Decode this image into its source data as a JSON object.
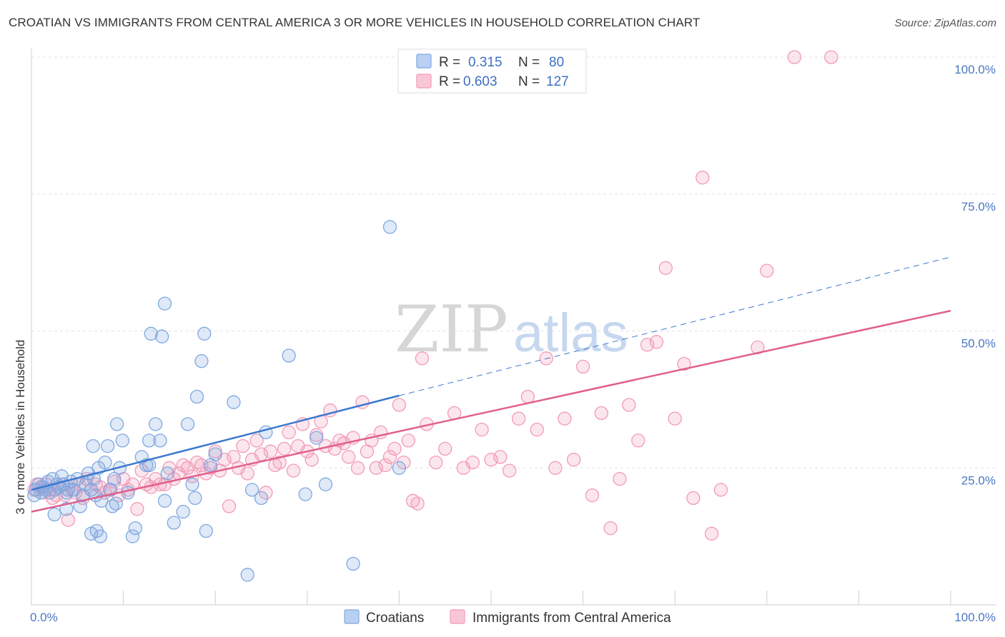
{
  "header": {
    "title": "CROATIAN VS IMMIGRANTS FROM CENTRAL AMERICA 3 OR MORE VEHICLES IN HOUSEHOLD CORRELATION CHART",
    "source": "Source: ZipAtlas.com"
  },
  "watermark": {
    "zip": "ZIP",
    "atlas": "atlas"
  },
  "chart_data": {
    "type": "scatter",
    "title": "CROATIAN VS IMMIGRANTS FROM CENTRAL AMERICA 3 OR MORE VEHICLES IN HOUSEHOLD CORRELATION CHART",
    "xlabel": "",
    "ylabel": "3 or more Vehicles in Household",
    "xlim": [
      0,
      100
    ],
    "ylim": [
      0,
      100
    ],
    "x_tick_labels": [
      "0.0%",
      "100.0%"
    ],
    "y_ticks": [
      25,
      50,
      75,
      100
    ],
    "y_tick_labels": [
      "25.0%",
      "50.0%",
      "75.0%",
      "100.0%"
    ],
    "grid": true,
    "legend_placement": "top-center",
    "legend": [
      {
        "r_label": "R =",
        "r_value": "0.315",
        "n_label": "N =",
        "n_value": "80"
      },
      {
        "r_label": "R =",
        "r_value": "0.603",
        "n_label": "N =",
        "n_value": "127"
      }
    ],
    "series": [
      {
        "name": "Croatians",
        "color": "#7fa8e0",
        "line_color": "#3b78cf",
        "trend": {
          "x0": 0,
          "y0": 21,
          "x1": 40,
          "y1": 38.2,
          "dash_x1": 100,
          "dash_y1": 63.5
        },
        "points": [
          [
            0.3,
            20
          ],
          [
            0.5,
            21
          ],
          [
            0.8,
            22
          ],
          [
            1,
            20.5
          ],
          [
            1.2,
            21.5
          ],
          [
            1.5,
            21
          ],
          [
            1.8,
            22.5
          ],
          [
            2,
            20.5
          ],
          [
            2.3,
            23
          ],
          [
            2.5,
            21
          ],
          [
            2.8,
            22
          ],
          [
            3,
            21.5
          ],
          [
            3.3,
            23.5
          ],
          [
            3.5,
            22
          ],
          [
            3.8,
            20.5
          ],
          [
            4,
            21
          ],
          [
            4.3,
            22.5
          ],
          [
            4.6,
            21
          ],
          [
            5,
            23
          ],
          [
            5.3,
            18
          ],
          [
            5.6,
            20
          ],
          [
            5.9,
            22
          ],
          [
            6.2,
            24
          ],
          [
            6.5,
            21
          ],
          [
            6.8,
            23
          ],
          [
            7,
            20
          ],
          [
            7.3,
            25
          ],
          [
            7.6,
            19
          ],
          [
            8,
            26
          ],
          [
            8.3,
            29
          ],
          [
            8.6,
            21
          ],
          [
            9,
            23
          ],
          [
            9.3,
            33
          ],
          [
            9.6,
            25
          ],
          [
            9.9,
            30
          ],
          [
            2.5,
            16.5
          ],
          [
            3.8,
            17.5
          ],
          [
            6.5,
            13
          ],
          [
            7.5,
            12.5
          ],
          [
            7.1,
            13.5
          ],
          [
            6.7,
            29
          ],
          [
            8.8,
            18
          ],
          [
            9.2,
            18.5
          ],
          [
            10.5,
            20.5
          ],
          [
            11,
            12.5
          ],
          [
            11.3,
            14
          ],
          [
            12,
            27
          ],
          [
            12.5,
            25.5
          ],
          [
            12.8,
            25.5
          ],
          [
            12.8,
            30
          ],
          [
            13,
            49.5
          ],
          [
            13.5,
            33
          ],
          [
            14,
            30
          ],
          [
            14.2,
            49
          ],
          [
            14.5,
            55
          ],
          [
            14.8,
            24
          ],
          [
            15.5,
            15
          ],
          [
            16.5,
            17
          ],
          [
            17,
            33
          ],
          [
            17.5,
            22
          ],
          [
            17.8,
            19.5
          ],
          [
            18,
            38
          ],
          [
            18.5,
            44.5
          ],
          [
            18.8,
            49.5
          ],
          [
            19,
            13.5
          ],
          [
            14.5,
            19
          ],
          [
            19.5,
            25.5
          ],
          [
            20,
            27.5
          ],
          [
            22,
            37
          ],
          [
            23.5,
            5.5
          ],
          [
            24,
            21
          ],
          [
            25,
            19.5
          ],
          [
            25.5,
            31.5
          ],
          [
            28,
            45.5
          ],
          [
            29.8,
            20.2
          ],
          [
            31,
            30.5
          ],
          [
            32,
            22
          ],
          [
            35,
            7.5
          ],
          [
            39,
            69
          ],
          [
            40,
            25
          ]
        ]
      },
      {
        "name": "Immigrants from Central America",
        "color": "#f29ab6",
        "line_color": "#e0608d",
        "trend": {
          "x0": 0,
          "y0": 17,
          "x1": 100,
          "y1": 53.7
        },
        "points": [
          [
            0.3,
            21
          ],
          [
            0.6,
            22
          ],
          [
            1,
            21.5
          ],
          [
            1.3,
            20.5
          ],
          [
            1.6,
            22
          ],
          [
            2,
            21
          ],
          [
            2.3,
            19.5
          ],
          [
            2.7,
            20
          ],
          [
            3,
            21.5
          ],
          [
            3.4,
            22
          ],
          [
            3.7,
            20
          ],
          [
            4,
            15.5
          ],
          [
            4.4,
            21
          ],
          [
            4.8,
            20.5
          ],
          [
            5.2,
            22
          ],
          [
            5.6,
            19.5
          ],
          [
            6,
            23
          ],
          [
            6.5,
            21
          ],
          [
            7,
            22
          ],
          [
            7.5,
            21.5
          ],
          [
            8,
            20.5
          ],
          [
            8.5,
            21
          ],
          [
            9,
            22.5
          ],
          [
            9.5,
            20
          ],
          [
            10,
            23
          ],
          [
            10.5,
            21
          ],
          [
            11,
            22
          ],
          [
            11.5,
            17.5
          ],
          [
            12,
            24.5
          ],
          [
            12.5,
            22
          ],
          [
            13,
            21.5
          ],
          [
            13.5,
            23
          ],
          [
            14,
            22
          ],
          [
            14.5,
            22
          ],
          [
            15,
            25
          ],
          [
            15.5,
            23
          ],
          [
            16,
            24
          ],
          [
            16.5,
            25.5
          ],
          [
            17,
            25
          ],
          [
            17.5,
            23.5
          ],
          [
            18,
            26
          ],
          [
            18.5,
            25.5
          ],
          [
            19,
            24
          ],
          [
            19.5,
            25
          ],
          [
            20,
            28
          ],
          [
            20.5,
            24.5
          ],
          [
            21,
            26.5
          ],
          [
            21.5,
            18
          ],
          [
            22,
            27
          ],
          [
            22.5,
            25
          ],
          [
            23,
            29
          ],
          [
            23.5,
            24
          ],
          [
            24,
            26.5
          ],
          [
            24.5,
            30
          ],
          [
            25,
            27.5
          ],
          [
            25.5,
            20.5
          ],
          [
            26,
            28
          ],
          [
            26.5,
            25.5
          ],
          [
            27,
            26
          ],
          [
            27.5,
            28.5
          ],
          [
            28,
            31.5
          ],
          [
            28.5,
            24.5
          ],
          [
            29,
            29
          ],
          [
            29.5,
            33
          ],
          [
            30,
            28
          ],
          [
            30.5,
            26.5
          ],
          [
            31,
            31
          ],
          [
            31.5,
            33.5
          ],
          [
            32,
            29
          ],
          [
            32.5,
            35.5
          ],
          [
            33,
            28.5
          ],
          [
            33.5,
            30
          ],
          [
            34,
            29.5
          ],
          [
            34.5,
            27
          ],
          [
            35,
            30.5
          ],
          [
            35.5,
            25
          ],
          [
            36,
            37
          ],
          [
            36.5,
            28
          ],
          [
            37,
            30
          ],
          [
            37.5,
            25
          ],
          [
            38,
            31.5
          ],
          [
            38.5,
            25.5
          ],
          [
            39,
            27
          ],
          [
            39.5,
            28.5
          ],
          [
            40,
            36.5
          ],
          [
            40.5,
            26
          ],
          [
            41,
            30
          ],
          [
            41.5,
            19
          ],
          [
            42,
            18.5
          ],
          [
            42.5,
            45
          ],
          [
            43,
            33
          ],
          [
            44,
            26
          ],
          [
            45,
            28.5
          ],
          [
            46,
            35
          ],
          [
            47,
            25
          ],
          [
            48,
            26
          ],
          [
            49,
            32
          ],
          [
            50,
            26.5
          ],
          [
            51,
            27
          ],
          [
            52,
            24.5
          ],
          [
            53,
            34
          ],
          [
            54,
            38
          ],
          [
            55,
            32
          ],
          [
            56,
            45
          ],
          [
            57,
            25
          ],
          [
            58,
            34
          ],
          [
            59,
            26.5
          ],
          [
            60,
            43.5
          ],
          [
            61,
            20
          ],
          [
            62,
            35
          ],
          [
            63,
            14
          ],
          [
            64,
            23
          ],
          [
            65,
            36.5
          ],
          [
            66,
            30
          ],
          [
            67,
            47.5
          ],
          [
            68,
            48
          ],
          [
            69,
            61.5
          ],
          [
            70,
            34
          ],
          [
            71,
            44
          ],
          [
            72,
            19.5
          ],
          [
            73,
            78
          ],
          [
            74,
            13
          ],
          [
            75,
            21
          ],
          [
            79,
            47
          ],
          [
            80,
            61
          ],
          [
            83,
            100
          ],
          [
            87,
            100
          ]
        ]
      }
    ]
  },
  "bottom_legend": {
    "croatians": "Croatians",
    "immigrants": "Immigrants from Central America"
  }
}
